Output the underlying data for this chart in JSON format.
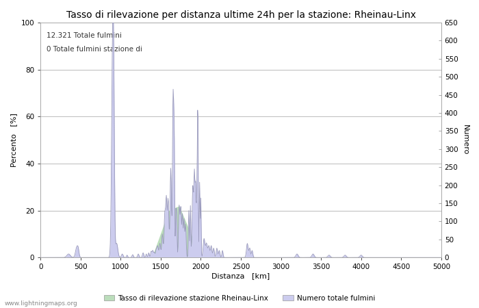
{
  "title": "Tasso di rilevazione per distanza ultime 24h per la stazione: Rheinau-Linx",
  "xlabel": "Distanza   [km]",
  "ylabel_left": "Percento   [%]",
  "ylabel_right": "Numero",
  "annotation_line1": "12.321 Totale fulmini",
  "annotation_line2": "0 Totale fulmini stazione di",
  "watermark": "www.lightningmaps.org",
  "xlim": [
    0,
    5000
  ],
  "ylim_left": [
    0,
    100
  ],
  "ylim_right": [
    0,
    650
  ],
  "xticks": [
    0,
    500,
    1000,
    1500,
    2000,
    2500,
    3000,
    3500,
    4000,
    4500,
    5000
  ],
  "yticks_left": [
    0,
    20,
    40,
    60,
    80,
    100
  ],
  "yticks_right": [
    0,
    50,
    100,
    150,
    200,
    250,
    300,
    350,
    400,
    450,
    500,
    550,
    600,
    650
  ],
  "legend_label_green": "Tasso di rilevazione stazione Rheinau-Linx",
  "legend_label_blue": "Numero totale fulmini",
  "line_color": "#9999bb",
  "fill_blue_color": "#ccccee",
  "fill_green_color": "#bbddbb",
  "background_color": "#ffffff",
  "grid_color": "#bbbbbb",
  "title_fontsize": 10,
  "axis_label_fontsize": 8,
  "tick_fontsize": 7.5,
  "annotation_fontsize": 7.5
}
